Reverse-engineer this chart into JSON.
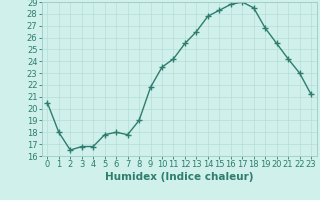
{
  "x": [
    0,
    1,
    2,
    3,
    4,
    5,
    6,
    7,
    8,
    9,
    10,
    11,
    12,
    13,
    14,
    15,
    16,
    17,
    18,
    19,
    20,
    21,
    22,
    23
  ],
  "y": [
    20.5,
    18.0,
    16.5,
    16.8,
    16.8,
    17.8,
    18.0,
    17.8,
    19.0,
    21.8,
    23.5,
    24.2,
    25.5,
    26.5,
    27.8,
    28.3,
    28.8,
    29.0,
    28.5,
    26.8,
    25.5,
    24.2,
    23.0,
    21.2
  ],
  "line_color": "#2e7d6e",
  "marker": "+",
  "marker_size": 4,
  "marker_lw": 1.0,
  "bg_color": "#cff0eb",
  "grid_color": "#b8ddd8",
  "xlabel": "Humidex (Indice chaleur)",
  "ylim_min": 16,
  "ylim_max": 29,
  "xlim_min": -0.5,
  "xlim_max": 23.5,
  "yticks": [
    16,
    17,
    18,
    19,
    20,
    21,
    22,
    23,
    24,
    25,
    26,
    27,
    28,
    29
  ],
  "xticks": [
    0,
    1,
    2,
    3,
    4,
    5,
    6,
    7,
    8,
    9,
    10,
    11,
    12,
    13,
    14,
    15,
    16,
    17,
    18,
    19,
    20,
    21,
    22,
    23
  ],
  "tick_label_fontsize": 6,
  "xlabel_fontsize": 7.5,
  "line_width": 1.0,
  "spine_color": "#9eccc5",
  "tick_color": "#2e7d6e"
}
